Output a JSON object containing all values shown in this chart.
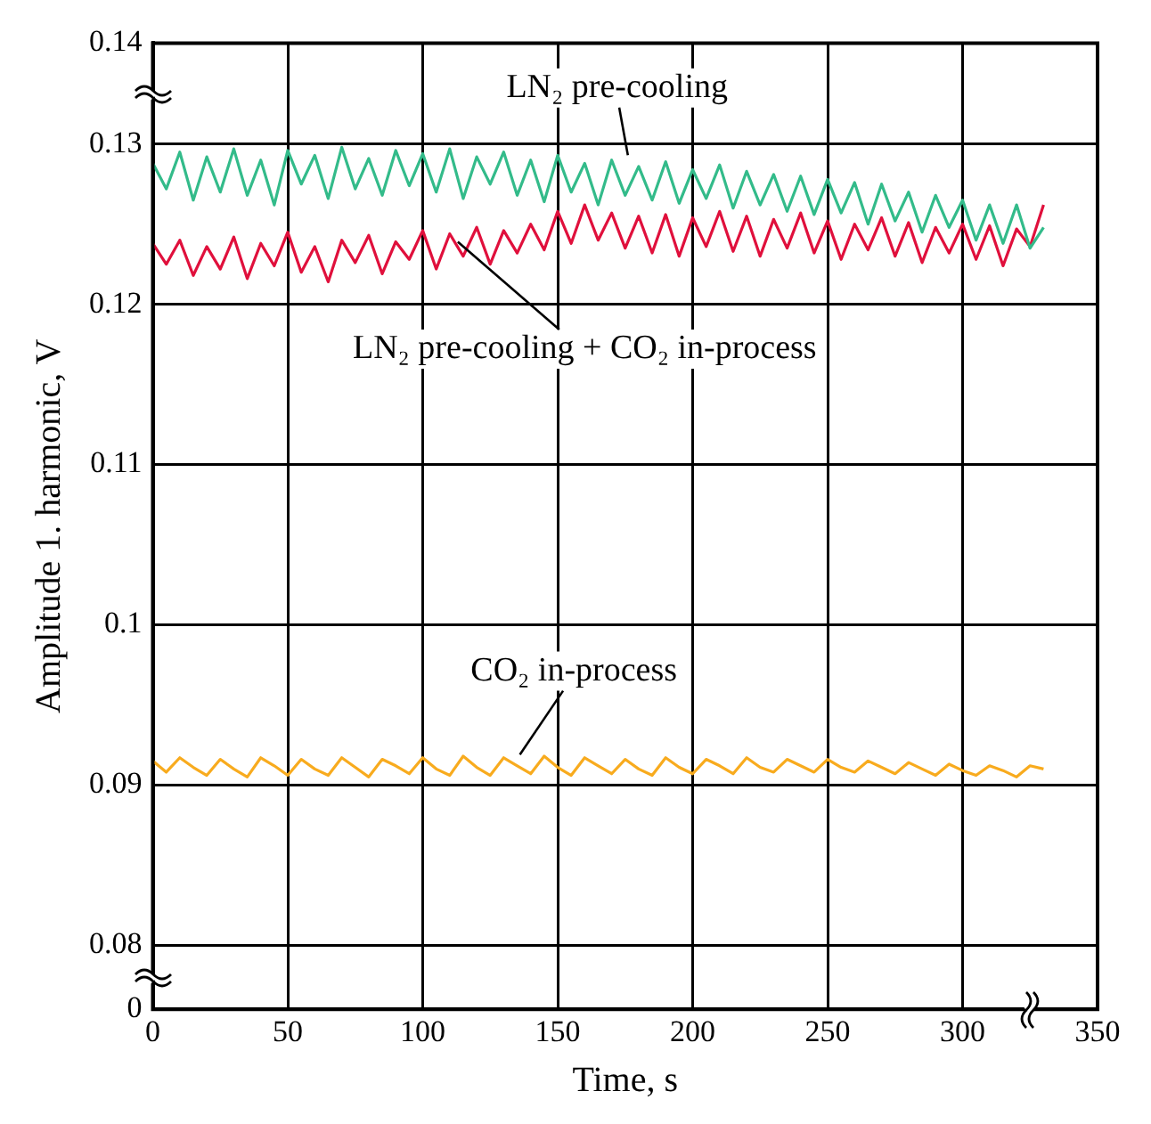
{
  "chart_data": {
    "type": "line",
    "xlabel": "Time, s",
    "ylabel": "Amplitude 1. harmonic, V",
    "x": [
      0,
      5,
      10,
      15,
      20,
      25,
      30,
      35,
      40,
      45,
      50,
      55,
      60,
      65,
      70,
      75,
      80,
      85,
      90,
      95,
      100,
      105,
      110,
      115,
      120,
      125,
      130,
      135,
      140,
      145,
      150,
      155,
      160,
      165,
      170,
      175,
      180,
      185,
      190,
      195,
      200,
      205,
      210,
      215,
      220,
      225,
      230,
      235,
      240,
      245,
      250,
      255,
      260,
      265,
      270,
      275,
      280,
      285,
      290,
      295,
      300,
      305,
      310,
      315,
      320,
      325,
      330
    ],
    "series": [
      {
        "name": "LN₂ pre-cooling",
        "color": "#33bb8a",
        "values": [
          0.1288,
          0.1272,
          0.1295,
          0.1265,
          0.1292,
          0.127,
          0.1297,
          0.1268,
          0.129,
          0.1262,
          0.1296,
          0.1275,
          0.1293,
          0.1266,
          0.1298,
          0.1272,
          0.1291,
          0.1268,
          0.1296,
          0.1274,
          0.1294,
          0.127,
          0.1297,
          0.1266,
          0.1292,
          0.1275,
          0.1295,
          0.1268,
          0.129,
          0.1264,
          0.1293,
          0.127,
          0.1288,
          0.1262,
          0.129,
          0.1268,
          0.1286,
          0.1265,
          0.1289,
          0.1263,
          0.1284,
          0.1266,
          0.1287,
          0.126,
          0.1283,
          0.1262,
          0.1281,
          0.1258,
          0.128,
          0.1256,
          0.1278,
          0.1257,
          0.1276,
          0.125,
          0.1275,
          0.1252,
          0.127,
          0.1245,
          0.1268,
          0.1248,
          0.1265,
          0.124,
          0.1262,
          0.1238,
          0.1262,
          0.1235,
          0.1248
        ]
      },
      {
        "name": "LN₂ pre-cooling + CO₂ in-process",
        "color": "#e0103c",
        "values": [
          0.1238,
          0.1225,
          0.124,
          0.1218,
          0.1236,
          0.1222,
          0.1242,
          0.1216,
          0.1238,
          0.1224,
          0.1245,
          0.122,
          0.1236,
          0.1214,
          0.124,
          0.1226,
          0.1243,
          0.1219,
          0.1239,
          0.1228,
          0.1246,
          0.1222,
          0.1244,
          0.123,
          0.1248,
          0.1225,
          0.1246,
          0.1232,
          0.125,
          0.1234,
          0.1258,
          0.1238,
          0.1262,
          0.124,
          0.1257,
          0.1235,
          0.1255,
          0.1232,
          0.1256,
          0.123,
          0.1254,
          0.1236,
          0.1258,
          0.1233,
          0.1255,
          0.123,
          0.1253,
          0.1235,
          0.1257,
          0.1232,
          0.1252,
          0.1228,
          0.125,
          0.1234,
          0.1254,
          0.123,
          0.1251,
          0.1226,
          0.1248,
          0.1232,
          0.125,
          0.1228,
          0.1249,
          0.1224,
          0.1247,
          0.1236,
          0.1262
        ]
      },
      {
        "name": "CO₂ in-process",
        "color": "#f8ab1e",
        "values": [
          0.0915,
          0.0908,
          0.0917,
          0.0911,
          0.0906,
          0.0916,
          0.091,
          0.0905,
          0.0917,
          0.0912,
          0.0906,
          0.0916,
          0.091,
          0.0906,
          0.0917,
          0.0911,
          0.0905,
          0.0916,
          0.0912,
          0.0907,
          0.0917,
          0.091,
          0.0906,
          0.0918,
          0.0911,
          0.0906,
          0.0917,
          0.0912,
          0.0907,
          0.0918,
          0.0911,
          0.0906,
          0.0917,
          0.0912,
          0.0907,
          0.0916,
          0.091,
          0.0906,
          0.0917,
          0.0911,
          0.0907,
          0.0916,
          0.0912,
          0.0907,
          0.0917,
          0.0911,
          0.0908,
          0.0916,
          0.0912,
          0.0908,
          0.0916,
          0.0911,
          0.0908,
          0.0915,
          0.0911,
          0.0907,
          0.0914,
          0.091,
          0.0906,
          0.0913,
          0.0909,
          0.0906,
          0.0912,
          0.0909,
          0.0905,
          0.0912,
          0.091
        ]
      }
    ],
    "xlim": [
      0,
      350
    ],
    "xticks": [
      0,
      50,
      100,
      150,
      200,
      250,
      300,
      350
    ],
    "ylim": [
      0.076,
      0.1363
    ],
    "yticks": [
      {
        "value": 0.076,
        "label": "0"
      },
      0.08,
      0.09,
      0.1,
      0.11,
      0.12,
      0.13,
      {
        "value": 0.1363,
        "label": "0.14"
      }
    ],
    "grid": true,
    "legend": false,
    "marker": "none",
    "line_style": "solid"
  }
}
